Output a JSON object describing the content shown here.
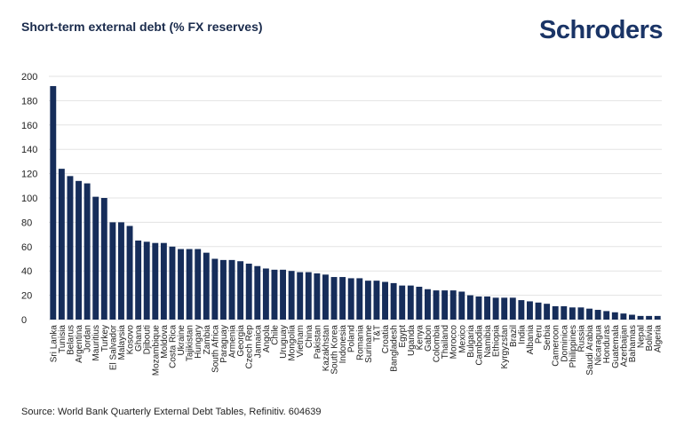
{
  "header": {
    "title": "Short-term external debt (% FX reserves)",
    "logo_text": "Schroders"
  },
  "footer": {
    "source": "Source: World Bank Quarterly External Debt Tables, Refinitiv. 604639"
  },
  "colors": {
    "bar": "#162d5a",
    "grid": "#e3e3e3",
    "axis_text": "#222222"
  },
  "chart_data": {
    "type": "bar",
    "title": "Short-term external debt (% FX reserves)",
    "xlabel": "",
    "ylabel": "",
    "ylim": [
      0,
      200
    ],
    "yticks": [
      0,
      20,
      40,
      60,
      80,
      100,
      120,
      140,
      160,
      180,
      200
    ],
    "grid": true,
    "categories": [
      "Sri Lanka",
      "Tunisia",
      "Belarus",
      "Argentina",
      "Jordan",
      "Mauritius",
      "Turkey",
      "El Salvador",
      "Malaysia",
      "Kosovo",
      "Ghana",
      "Djibouti",
      "Mozambique",
      "Moldova",
      "Costa Rica",
      "Ukraine",
      "Tajikistan",
      "Hungary",
      "Zambia",
      "South Africa",
      "Paraguay",
      "Armenia",
      "Georgia",
      "Czech Rep",
      "Jamaica",
      "Angola",
      "Chile",
      "Uruguay",
      "Mongolia",
      "Vietnam",
      "China",
      "Pakistan",
      "Kazakhstan",
      "South Korea",
      "Indonesia",
      "Poland",
      "Romania",
      "Suriname",
      "T&T",
      "Croatia",
      "Bangladesh",
      "Egypt",
      "Uganda",
      "Kenya",
      "Gabon",
      "Colombia",
      "Thailand",
      "Morocco",
      "Mexico",
      "Bulgaria",
      "Cambodia",
      "Namibia",
      "Ethiopia",
      "Kyrgyzstan",
      "Brazil",
      "India",
      "Albania",
      "Peru",
      "Serbia",
      "Cameroon",
      "Dominica",
      "Philippines",
      "Russia",
      "Saudi Arabia",
      "Nicaragua",
      "Honduras",
      "Guatemala",
      "Azerbaijan",
      "Bahamas",
      "Nepal",
      "Bolivia",
      "Algeria"
    ],
    "values": [
      192,
      124,
      118,
      114,
      112,
      101,
      100,
      80,
      80,
      77,
      65,
      64,
      63,
      63,
      60,
      58,
      58,
      58,
      55,
      50,
      49,
      49,
      48,
      46,
      44,
      42,
      41,
      41,
      40,
      39,
      39,
      38,
      37,
      35,
      35,
      34,
      34,
      32,
      32,
      31,
      30,
      28,
      28,
      27,
      25,
      24,
      24,
      24,
      23,
      20,
      19,
      19,
      18,
      18,
      18,
      16,
      15,
      14,
      13,
      11,
      11,
      10,
      10,
      9,
      8,
      7,
      6,
      5,
      4,
      3,
      3,
      3
    ]
  }
}
